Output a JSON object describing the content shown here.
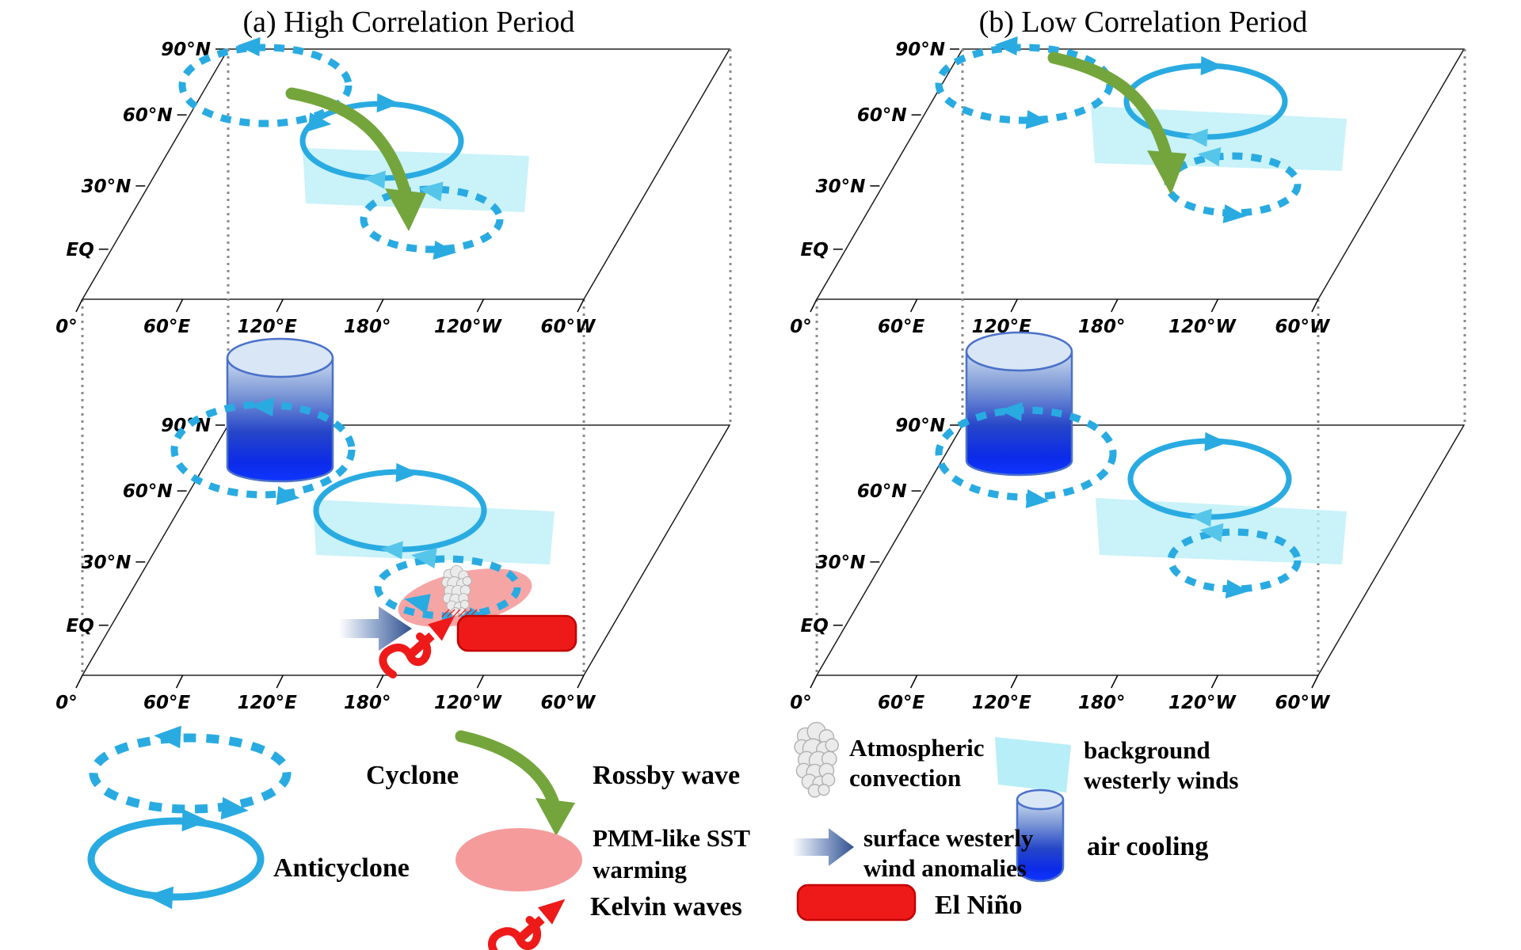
{
  "titles": {
    "panel_a": "(a) High Correlation Period",
    "panel_b": "(b) Low Correlation Period"
  },
  "axis": {
    "lat_labels": [
      "90°N",
      "60°N",
      "30°N",
      "EQ"
    ],
    "lon_labels": [
      "0°",
      "60°E",
      "120°E",
      "180°",
      "120°W",
      "60°W"
    ]
  },
  "legend": {
    "cyclone": "Cyclone",
    "rossby": "Rossby wave",
    "convection_line1": "Atmospheric",
    "convection_line2": "convection",
    "bww_line1": "background",
    "bww_line2": "westerly winds",
    "anticyclone": "Anticyclone",
    "pmm_line1": "PMM-like SST",
    "pmm_line2": "warming",
    "swa_line1": "surface westerly",
    "swa_line2": "wind anomalies",
    "cooling": "air cooling",
    "kelvin": "Kelvin waves",
    "elnino": "El Niño"
  },
  "icons": {
    "cyclone": "dashed-cyan-ellipse-with-arrows",
    "anticyclone": "solid-cyan-ellipse-with-arrows",
    "rossby_wave": "green-curved-arrow",
    "pmm_warming": "pink-ellipse",
    "kelvin_waves": "red-wavy-arrow",
    "atmospheric_convection": "gray-cloud-columns",
    "surface_westerly_wind": "blue-gradient-arrow",
    "el_nino": "red-rounded-rectangle",
    "background_westerly_winds": "light-cyan-patch",
    "air_cooling": "blue-gradient-cylinder"
  },
  "colors": {
    "cyan": "#29abe2",
    "cyan_light": "#55c6ea",
    "patch": "#b7eef7",
    "green": "#74a53c",
    "pink": "#f59b9b",
    "red": "#ee1a1a",
    "red_border": "#c40000",
    "land": "#a5a5a5",
    "ocean": "#ffffff",
    "edge": "#1a1a1a",
    "dotted": "#8a8a8a",
    "arrow_blue": "#31508f",
    "cylinder_light": "#ccdcf0",
    "cylinder_dark": "#0f35ff",
    "cylinder_stroke": "#4a71c9",
    "text": "#000000"
  }
}
